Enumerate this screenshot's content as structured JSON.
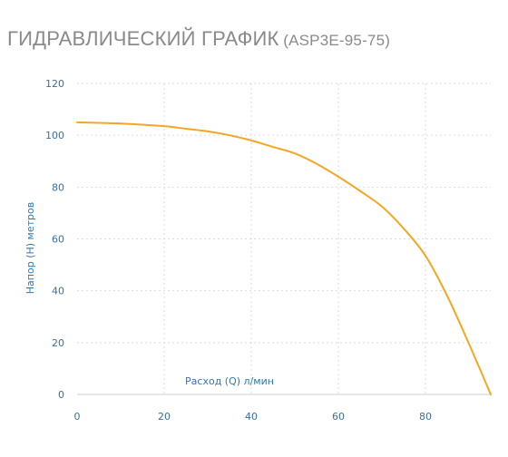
{
  "header": {
    "title": "ГИДРАВЛИЧЕСКИЙ ГРАФИК",
    "model": "(ASP3E-95-75)"
  },
  "chart_data": {
    "type": "line",
    "xlabel": "Расход (Q) л/мин",
    "ylabel": "Напор (H) метров",
    "xlim": [
      0,
      95
    ],
    "ylim": [
      0,
      120
    ],
    "xticks": [
      0,
      20,
      40,
      60,
      80
    ],
    "yticks": [
      0,
      20,
      40,
      60,
      80,
      100,
      120
    ],
    "grid": true,
    "series": [
      {
        "color": "#f5a623",
        "x": [
          0,
          10,
          20,
          25,
          30,
          35,
          40,
          45,
          50,
          55,
          60,
          65,
          70,
          75,
          80,
          85,
          90,
          95
        ],
        "y": [
          105,
          104.5,
          103.5,
          102.5,
          101.5,
          100,
          98,
          95.5,
          93,
          89,
          84,
          78.5,
          72.5,
          64,
          53.5,
          38,
          19.5,
          0
        ]
      }
    ]
  }
}
